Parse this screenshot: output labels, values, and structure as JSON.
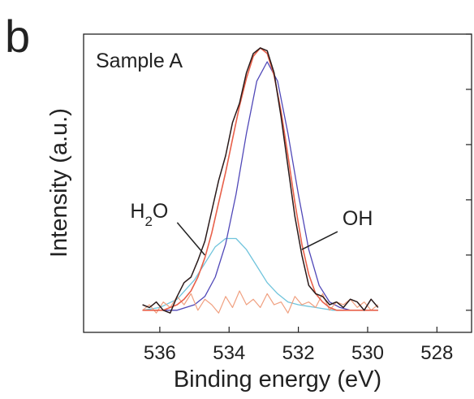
{
  "panel_label": "b",
  "chart_data": {
    "type": "line",
    "title": "",
    "sample_label": "Sample A",
    "xlabel": "Binding energy (eV)",
    "ylabel": "Intensity (a.u.)",
    "xlim": [
      538.2,
      527.0
    ],
    "ylim": [
      -0.08,
      1.0
    ],
    "x_ticks": [
      536,
      534,
      532,
      530,
      528
    ],
    "x_tick_labels": [
      "536",
      "534",
      "532",
      "530",
      "528"
    ],
    "y_ticks": [
      0.0,
      0.2,
      0.4,
      0.6,
      0.8,
      1.0
    ],
    "grid": false,
    "x_reversed": true,
    "annotations": [
      {
        "text": "H",
        "sub": "2",
        "after": "O",
        "target_x": 534.7,
        "target_y": 0.2,
        "side": "left"
      },
      {
        "text": "OH",
        "target_x": 531.9,
        "target_y": 0.22,
        "side": "right"
      }
    ],
    "series": [
      {
        "role": "measured",
        "color": "#2a1a1a",
        "x": [
          536.5,
          536.3,
          536.1,
          535.9,
          535.7,
          535.5,
          535.3,
          535.1,
          534.9,
          534.7,
          534.5,
          534.3,
          534.1,
          533.9,
          533.7,
          533.5,
          533.3,
          533.1,
          532.9,
          532.7,
          532.5,
          532.3,
          532.1,
          531.9,
          531.7,
          531.5,
          531.3,
          531.1,
          530.9,
          530.7,
          530.5,
          530.3,
          530.1,
          529.9,
          529.7
        ],
        "y": [
          0.02,
          0.01,
          0.03,
          0.0,
          -0.01,
          0.05,
          0.1,
          0.12,
          0.18,
          0.25,
          0.36,
          0.47,
          0.56,
          0.68,
          0.75,
          0.86,
          0.93,
          0.95,
          0.94,
          0.86,
          0.7,
          0.52,
          0.34,
          0.2,
          0.09,
          0.06,
          0.05,
          0.02,
          0.03,
          0.01,
          0.04,
          0.03,
          0.0,
          0.04,
          0.01
        ]
      },
      {
        "role": "envelope",
        "color": "#e8604a",
        "x": [
          536.5,
          536.3,
          536.1,
          535.9,
          535.7,
          535.5,
          535.3,
          535.1,
          534.9,
          534.7,
          534.5,
          534.3,
          534.1,
          533.9,
          533.7,
          533.5,
          533.3,
          533.1,
          532.9,
          532.7,
          532.5,
          532.3,
          532.1,
          531.9,
          531.7,
          531.5,
          531.3,
          531.1,
          530.9,
          530.7,
          530.5,
          530.3,
          530.1,
          529.9,
          529.7
        ],
        "y": [
          0.0,
          0.0,
          0.0,
          0.0,
          0.01,
          0.02,
          0.04,
          0.07,
          0.12,
          0.19,
          0.28,
          0.39,
          0.5,
          0.62,
          0.74,
          0.84,
          0.92,
          0.95,
          0.93,
          0.85,
          0.72,
          0.56,
          0.39,
          0.24,
          0.13,
          0.06,
          0.03,
          0.01,
          0.0,
          0.0,
          0.0,
          0.0,
          0.0,
          0.0,
          0.0
        ]
      },
      {
        "role": "component-OH",
        "color": "#5048b8",
        "x": [
          536.5,
          536.0,
          535.5,
          535.0,
          534.7,
          534.4,
          534.1,
          533.8,
          533.5,
          533.2,
          532.9,
          532.6,
          532.3,
          532.0,
          531.7,
          531.4,
          531.1,
          530.8,
          530.5,
          530.0,
          529.7
        ],
        "y": [
          0.0,
          0.0,
          0.0,
          0.02,
          0.05,
          0.12,
          0.24,
          0.42,
          0.64,
          0.83,
          0.9,
          0.83,
          0.64,
          0.42,
          0.22,
          0.09,
          0.03,
          0.01,
          0.0,
          0.0,
          0.0
        ]
      },
      {
        "role": "component-H2O",
        "color": "#70c4dc",
        "x": [
          536.5,
          536.0,
          535.5,
          535.0,
          534.7,
          534.4,
          534.1,
          533.8,
          533.5,
          533.2,
          532.9,
          532.6,
          532.3,
          532.0,
          531.5,
          531.0,
          530.5,
          530.0,
          529.7
        ],
        "y": [
          0.0,
          0.01,
          0.04,
          0.11,
          0.17,
          0.23,
          0.26,
          0.26,
          0.22,
          0.16,
          0.1,
          0.06,
          0.03,
          0.02,
          0.01,
          0.0,
          0.0,
          0.0,
          0.0
        ]
      },
      {
        "role": "residual",
        "color": "#f0a080",
        "x": [
          536.5,
          536.3,
          536.1,
          535.9,
          535.7,
          535.5,
          535.3,
          535.1,
          534.9,
          534.7,
          534.5,
          534.3,
          534.1,
          533.9,
          533.7,
          533.5,
          533.3,
          533.1,
          532.9,
          532.7,
          532.5,
          532.3,
          532.1,
          531.9,
          531.7,
          531.5,
          531.3,
          531.1,
          530.9,
          530.7,
          530.5,
          530.3,
          530.1,
          529.9,
          529.7
        ],
        "y": [
          0.0,
          0.02,
          -0.01,
          0.03,
          0.01,
          0.05,
          0.02,
          0.06,
          0.0,
          0.04,
          0.02,
          -0.01,
          0.05,
          0.01,
          0.07,
          0.02,
          0.04,
          0.01,
          0.06,
          0.02,
          0.03,
          -0.01,
          0.05,
          0.02,
          0.03,
          0.01,
          0.06,
          0.0,
          0.03,
          0.02,
          0.04,
          0.01,
          0.03,
          0.0,
          0.02
        ]
      }
    ]
  }
}
